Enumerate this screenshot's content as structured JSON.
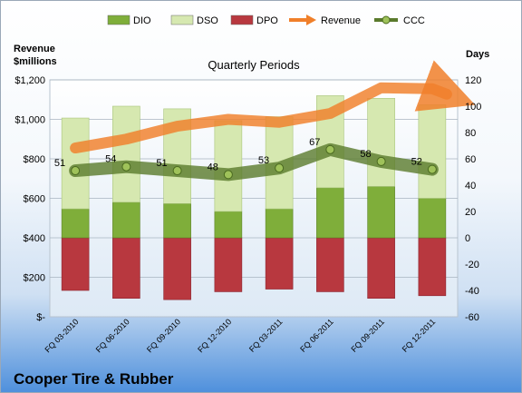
{
  "chart_data": {
    "type": "bar",
    "title": "Quarterly Periods",
    "company": "Cooper Tire & Rubber",
    "left_axis": {
      "label_line1": "Revenue",
      "label_line2": "$millions",
      "min": 0,
      "max": 1200,
      "step": 200,
      "tick_labels": [
        "$-",
        "$200",
        "$400",
        "$600",
        "$800",
        "$1,000",
        "$1,200"
      ]
    },
    "right_axis": {
      "label": "Days",
      "min": -60,
      "max": 120,
      "step": 20,
      "tick_labels": [
        "-60",
        "-40",
        "-20",
        "0",
        "20",
        "40",
        "60",
        "80",
        "100",
        "120"
      ]
    },
    "categories": [
      "FQ 03-2010",
      "FQ 06-2010",
      "FQ 09-2010",
      "FQ 12-2010",
      "FQ 03-2011",
      "FQ 06-2011",
      "FQ 09-2011",
      "FQ 12-2011"
    ],
    "legend": [
      "DIO",
      "DSO",
      "DPO",
      "Revenue",
      "CCC"
    ],
    "series": [
      {
        "name": "DIO",
        "axis": "right",
        "color": "#7fae3a",
        "values": [
          22,
          27,
          26,
          20,
          22,
          38,
          39,
          30
        ]
      },
      {
        "name": "DSO",
        "axis": "right",
        "color": "#d6e8b0",
        "values": [
          69,
          73,
          72,
          69,
          70,
          70,
          67,
          71
        ]
      },
      {
        "name": "DPO",
        "axis": "right",
        "color": "#b8383f",
        "values": [
          -40,
          -46,
          -47,
          -41,
          -39,
          -41,
          -46,
          -44
        ]
      },
      {
        "name": "Revenue",
        "axis": "left",
        "color": "#f07f2a",
        "values": [
          855,
          900,
          965,
          1000,
          985,
          1030,
          1160,
          1155
        ]
      },
      {
        "name": "CCC",
        "axis": "right",
        "color": "#5a7a2c",
        "values": [
          51,
          54,
          51,
          48,
          53,
          67,
          58,
          52
        ]
      }
    ],
    "ccc_labels": [
      "51",
      "54",
      "51",
      "48",
      "53",
      "67",
      "58",
      "52"
    ],
    "grid": true,
    "legend_position": "top"
  }
}
